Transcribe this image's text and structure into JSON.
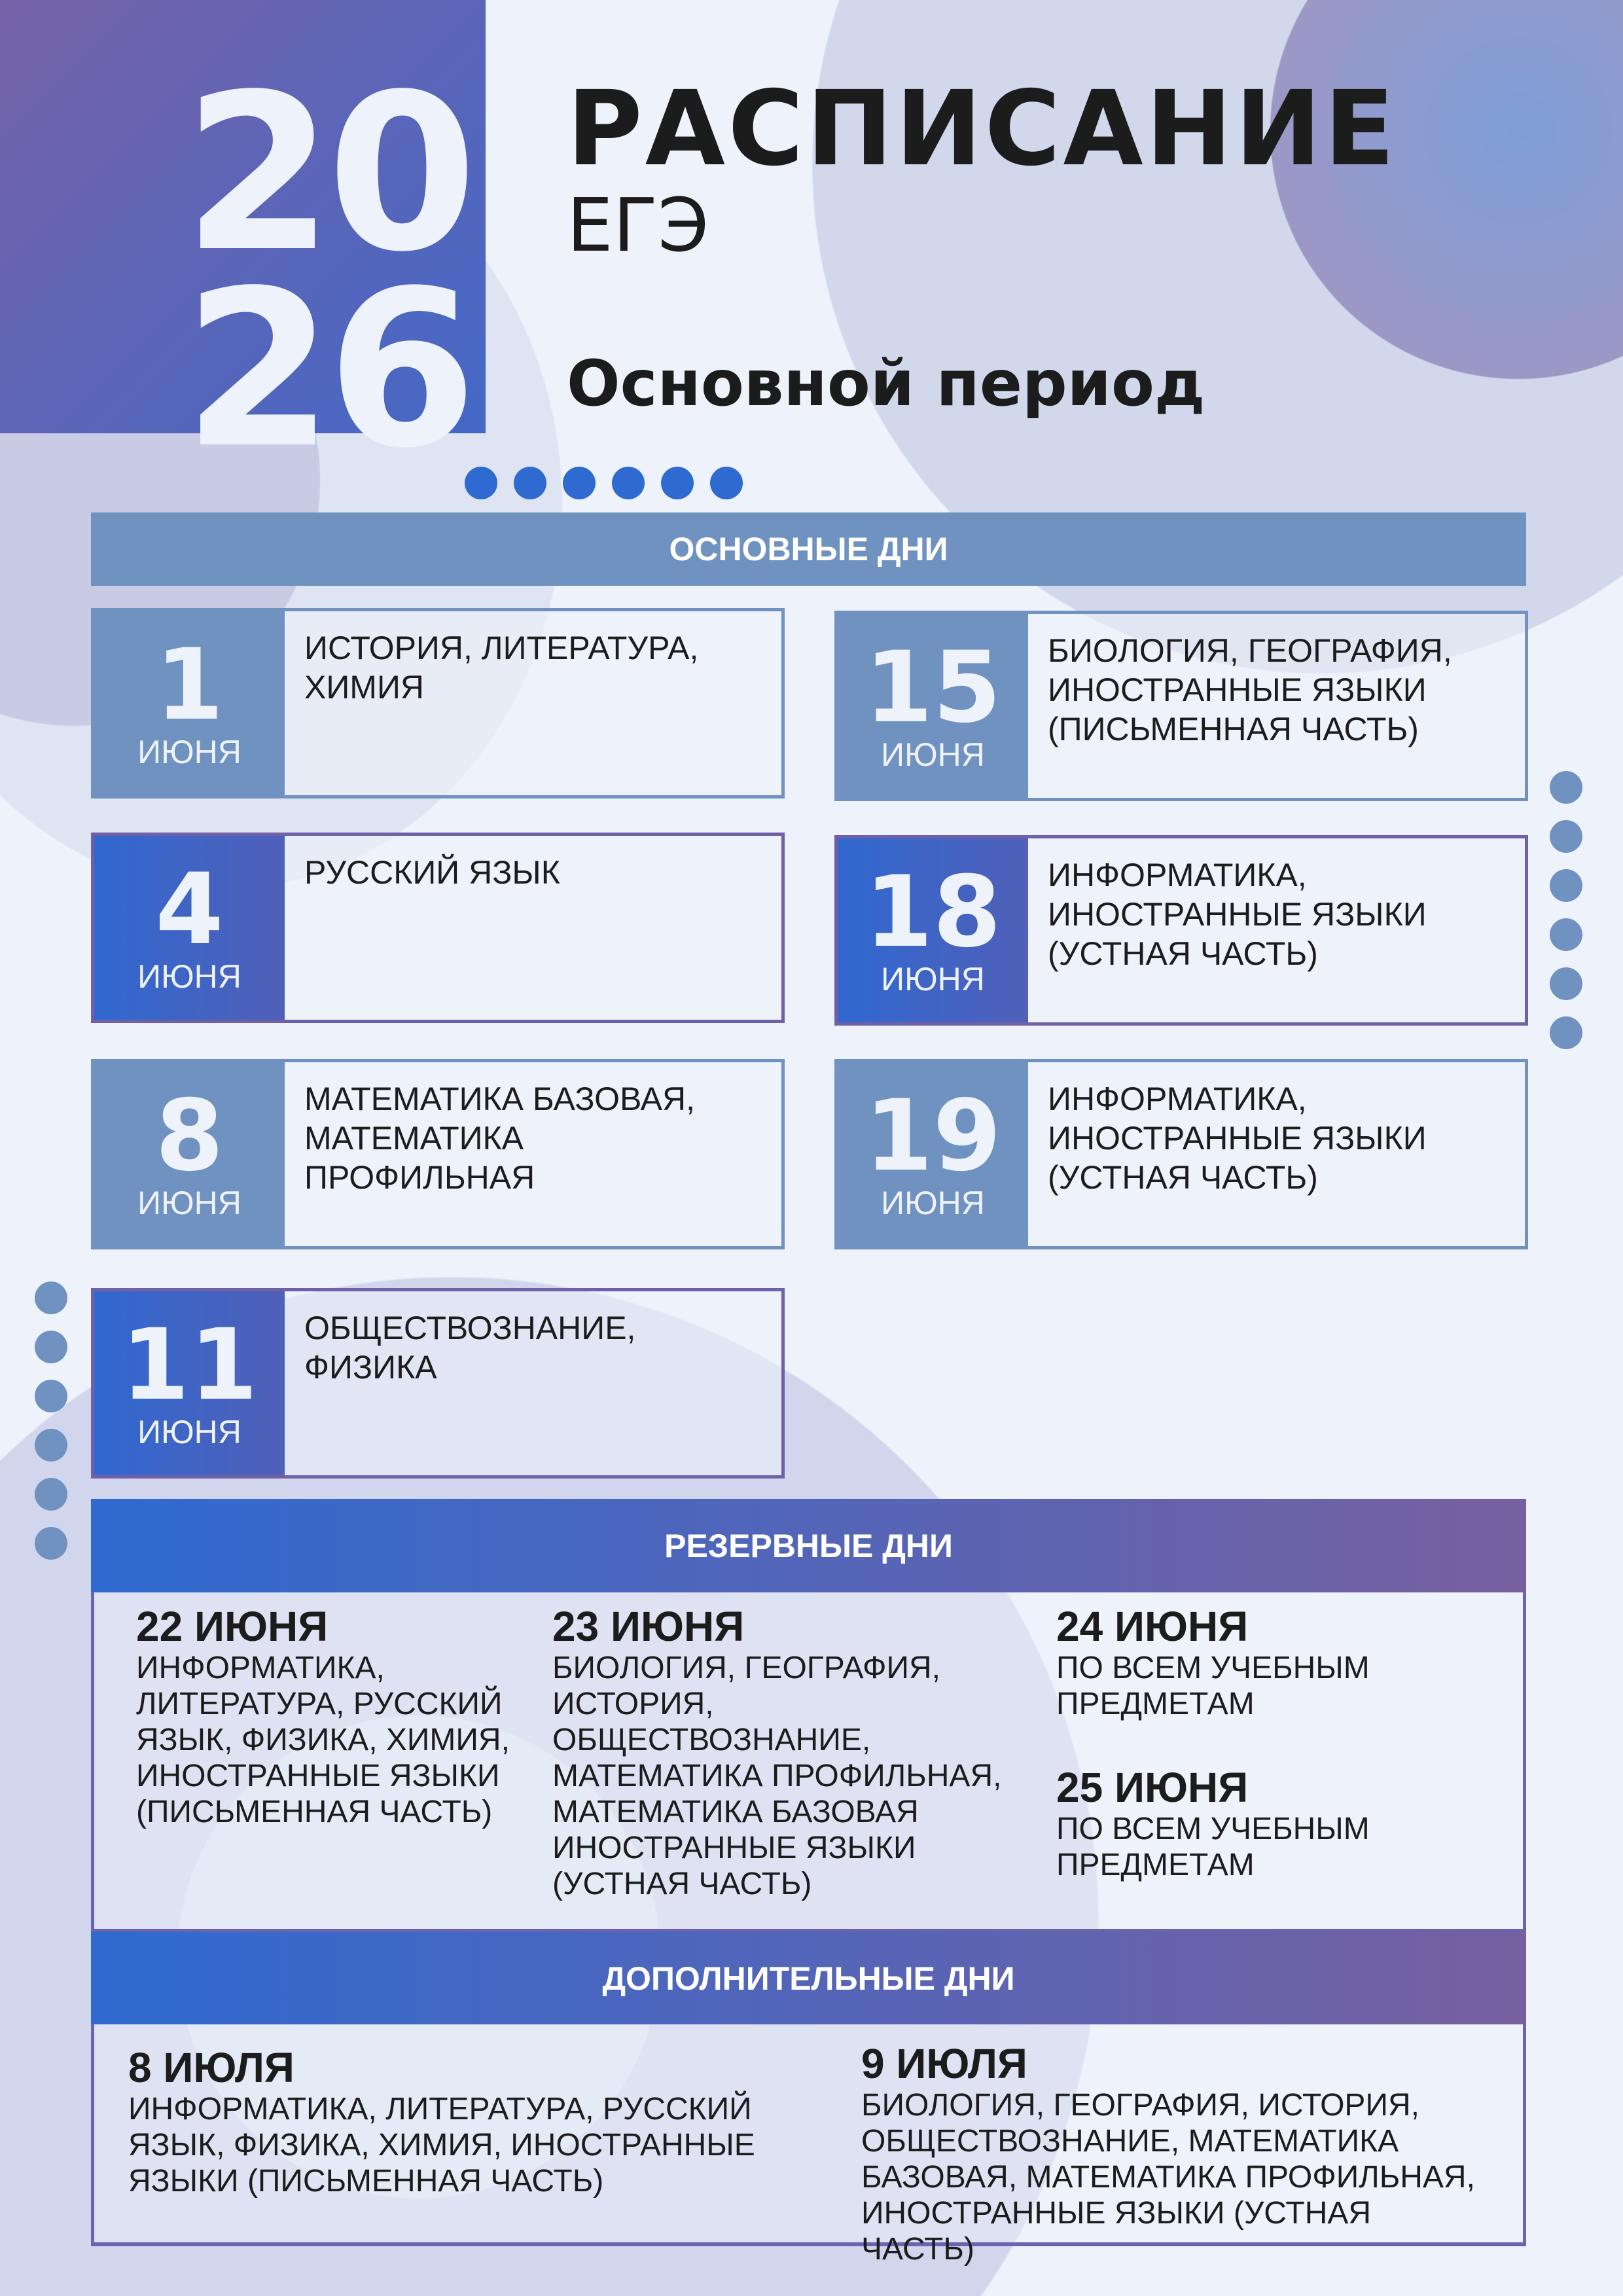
{
  "header": {
    "year_top": "20",
    "year_bottom": "26",
    "title": "РАСПИСАНИЕ",
    "subtitle": "ЕГЭ",
    "period": "Основной период"
  },
  "colors": {
    "primary_blue": "#3068d0",
    "steel_blue": "#7092c0",
    "purple": "#7060a8",
    "background": "#eef2fa"
  },
  "main_days": {
    "title": "ОСНОВНЫЕ ДНИ",
    "items": [
      {
        "day": "1",
        "month": "ИЮНЯ",
        "subjects": "ИСТОРИЯ, ЛИТЕРАТУРА, ХИМИЯ"
      },
      {
        "day": "15",
        "month": "ИЮНЯ",
        "subjects": "БИОЛОГИЯ, ГЕОГРАФИЯ, ИНОСТРАННЫЕ ЯЗЫКИ (ПИСЬМЕННАЯ ЧАСТЬ)"
      },
      {
        "day": "4",
        "month": "ИЮНЯ",
        "subjects": "РУССКИЙ ЯЗЫК"
      },
      {
        "day": "18",
        "month": "ИЮНЯ",
        "subjects": "ИНФОРМАТИКА, ИНОСТРАННЫЕ ЯЗЫКИ (УСТНАЯ ЧАСТЬ)"
      },
      {
        "day": "8",
        "month": "ИЮНЯ",
        "subjects": "МАТЕМАТИКА БАЗОВАЯ, МАТЕМАТИКА ПРОФИЛЬНАЯ"
      },
      {
        "day": "19",
        "month": "ИЮНЯ",
        "subjects": "ИНФОРМАТИКА, ИНОСТРАННЫЕ ЯЗЫКИ (УСТНАЯ ЧАСТЬ)"
      },
      {
        "day": "11",
        "month": "ИЮНЯ",
        "subjects": "ОБЩЕСТВОЗНАНИЕ, ФИЗИКА"
      }
    ]
  },
  "reserve_days": {
    "title": "РЕЗЕРВНЫЕ ДНИ",
    "items": [
      {
        "date": "22 ИЮНЯ",
        "subjects": "ИНФОРМАТИКА, ЛИТЕРАТУРА, РУССКИЙ ЯЗЫК, ФИЗИКА, ХИМИЯ, ИНОСТРАННЫЕ ЯЗЫКИ (ПИСЬМЕННАЯ ЧАСТЬ)"
      },
      {
        "date": "23 ИЮНЯ",
        "subjects": "БИОЛОГИЯ, ГЕОГРАФИЯ, ИСТОРИЯ, ОБЩЕСТВОЗНАНИЕ, МАТЕМАТИКА ПРОФИЛЬНАЯ, МАТЕМАТИКА БАЗОВАЯ ИНОСТРАННЫЕ ЯЗЫКИ (УСТНАЯ ЧАСТЬ)"
      },
      {
        "date": "24 ИЮНЯ",
        "subjects": "ПО ВСЕМ УЧЕБНЫМ ПРЕДМЕТАМ"
      },
      {
        "date": "25 ИЮНЯ",
        "subjects": "ПО ВСЕМ УЧЕБНЫМ ПРЕДМЕТАМ"
      }
    ]
  },
  "additional_days": {
    "title": "ДОПОЛНИТЕЛЬНЫЕ ДНИ",
    "items": [
      {
        "date": "8 ИЮЛЯ",
        "subjects": "ИНФОРМАТИКА, ЛИТЕРАТУРА, РУССКИЙ ЯЗЫК, ФИЗИКА, ХИМИЯ, ИНОСТРАННЫЕ ЯЗЫКИ (ПИСЬМЕННАЯ ЧАСТЬ)"
      },
      {
        "date": "9 ИЮЛЯ",
        "subjects": "БИОЛОГИЯ, ГЕОГРАФИЯ, ИСТОРИЯ, ОБЩЕСТВОЗНАНИЕ, МАТЕМАТИКА БАЗОВАЯ, МАТЕМАТИКА ПРОФИЛЬНАЯ, ИНОСТРАННЫЕ ЯЗЫКИ (УСТНАЯ ЧАСТЬ)"
      }
    ]
  }
}
